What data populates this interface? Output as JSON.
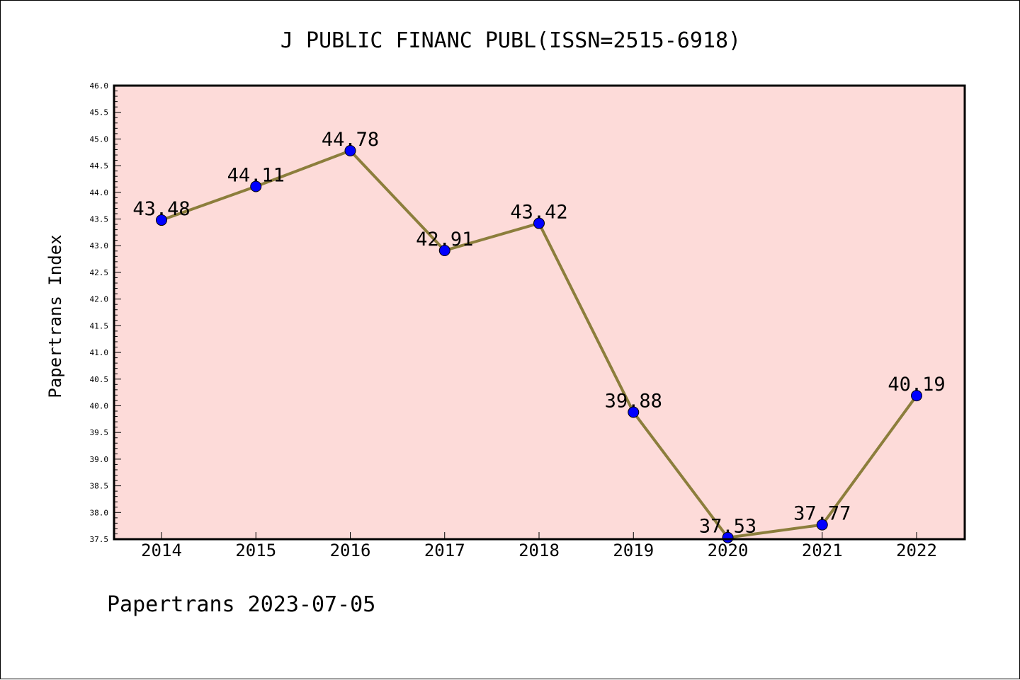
{
  "chart_data": {
    "type": "line",
    "title": "J PUBLIC FINANC PUBL(ISSN=2515-6918)",
    "ylabel": "Papertrans Index",
    "xlabel": "",
    "footer": "Papertrans 2023-07-05",
    "categories": [
      "2014",
      "2015",
      "2016",
      "2017",
      "2018",
      "2019",
      "2020",
      "2021",
      "2022"
    ],
    "values": [
      43.48,
      44.11,
      44.78,
      42.91,
      43.42,
      39.88,
      37.53,
      37.77,
      40.19
    ],
    "data_labels": [
      "43.48",
      "44.11",
      "44.78",
      "42.91",
      "43.42",
      "39.88",
      "37.53",
      "37.77",
      "40.19"
    ],
    "ylim": [
      37.5,
      46.0
    ],
    "yticks": [
      "37.5",
      "38.0",
      "38.5",
      "39.0",
      "39.5",
      "40.0",
      "40.5",
      "41.0",
      "41.5",
      "42.0",
      "42.5",
      "43.0",
      "43.5",
      "44.0",
      "44.5",
      "45.0",
      "45.5",
      "46.0"
    ],
    "grid": false,
    "colors": {
      "plot_background": "#fddbd9",
      "line": "#8c7e3c",
      "marker": "#0000ff"
    }
  }
}
